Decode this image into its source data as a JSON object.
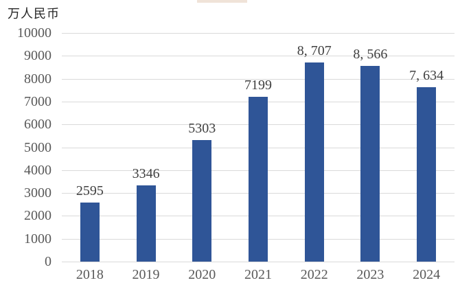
{
  "chart_data": {
    "type": "bar",
    "title": "",
    "unit_label": "万人民币",
    "categories": [
      "2018",
      "2019",
      "2020",
      "2021",
      "2022",
      "2023",
      "2024"
    ],
    "values": [
      2595,
      3346,
      5303,
      7199,
      8707,
      8566,
      7634
    ],
    "value_labels": [
      "2595",
      "3346",
      "5303",
      "7199",
      "8, 707",
      "8, 566",
      "7, 634"
    ],
    "xlabel": "",
    "ylabel": "万人民币",
    "ylim": [
      0,
      10000
    ],
    "ytick_step": 1000,
    "yticks": [
      "0",
      "1000",
      "2000",
      "3000",
      "4000",
      "5000",
      "6000",
      "7000",
      "8000",
      "9000",
      "10000"
    ],
    "grid": true,
    "legend": "none",
    "colors": {
      "bar": "#2F5597",
      "gridline": "#D9D9D9",
      "tick_text": "#595959",
      "value_label_text": "#404040",
      "unit_text": "#262626",
      "background": "#FFFFFF",
      "title_fragment": "#F0E3D8"
    }
  }
}
